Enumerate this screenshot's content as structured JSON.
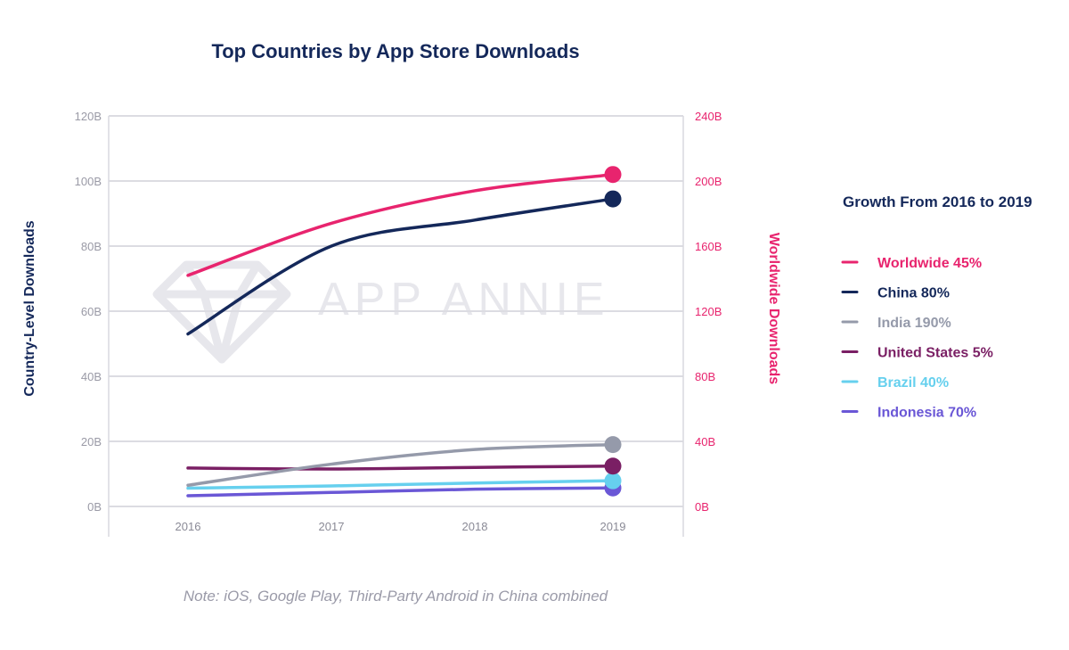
{
  "chart_data": {
    "type": "line",
    "title": "Top Countries by App Store Downloads",
    "ylabel_left": "Country-Level Downloads",
    "ylabel_right": "Worldwide Downloads",
    "ylim_left": [
      0,
      120
    ],
    "ylim_right": [
      0,
      240
    ],
    "yticks_left": [
      "0B",
      "20B",
      "40B",
      "60B",
      "80B",
      "100B",
      "120B"
    ],
    "yticks_right": [
      "0B",
      "40B",
      "80B",
      "120B",
      "160B",
      "200B",
      "240B"
    ],
    "categories": [
      "2016",
      "2017",
      "2018",
      "2019"
    ],
    "grid": true,
    "watermark": "APP ANNIE",
    "note": "Note: iOS, Google Play, Third-Party Android in China combined",
    "legend_title": "Growth From 2016 to 2019",
    "series": [
      {
        "name": "Worldwide",
        "legend_label": "Worldwide 45%",
        "axis": "right",
        "color": "#e8246e",
        "values": [
          142,
          174,
          194,
          204
        ]
      },
      {
        "name": "China",
        "legend_label": "China 80%",
        "axis": "left",
        "color": "#14285a",
        "values": [
          53,
          80,
          88,
          94.5
        ]
      },
      {
        "name": "India",
        "legend_label": "India 190%",
        "axis": "left",
        "color": "#959aaa",
        "values": [
          6.5,
          13,
          17.5,
          19
        ]
      },
      {
        "name": "United States",
        "legend_label": "United States 5%",
        "axis": "left",
        "color": "#7a1f64",
        "values": [
          11.8,
          11.5,
          12,
          12.4
        ]
      },
      {
        "name": "Brazil",
        "legend_label": "Brazil 40%",
        "axis": "left",
        "color": "#66d0ee",
        "values": [
          5.6,
          6.3,
          7.2,
          7.9
        ]
      },
      {
        "name": "Indonesia",
        "legend_label": "Indonesia 70%",
        "axis": "left",
        "color": "#6a57d6",
        "values": [
          3.3,
          4.3,
          5.3,
          5.7
        ]
      }
    ]
  }
}
